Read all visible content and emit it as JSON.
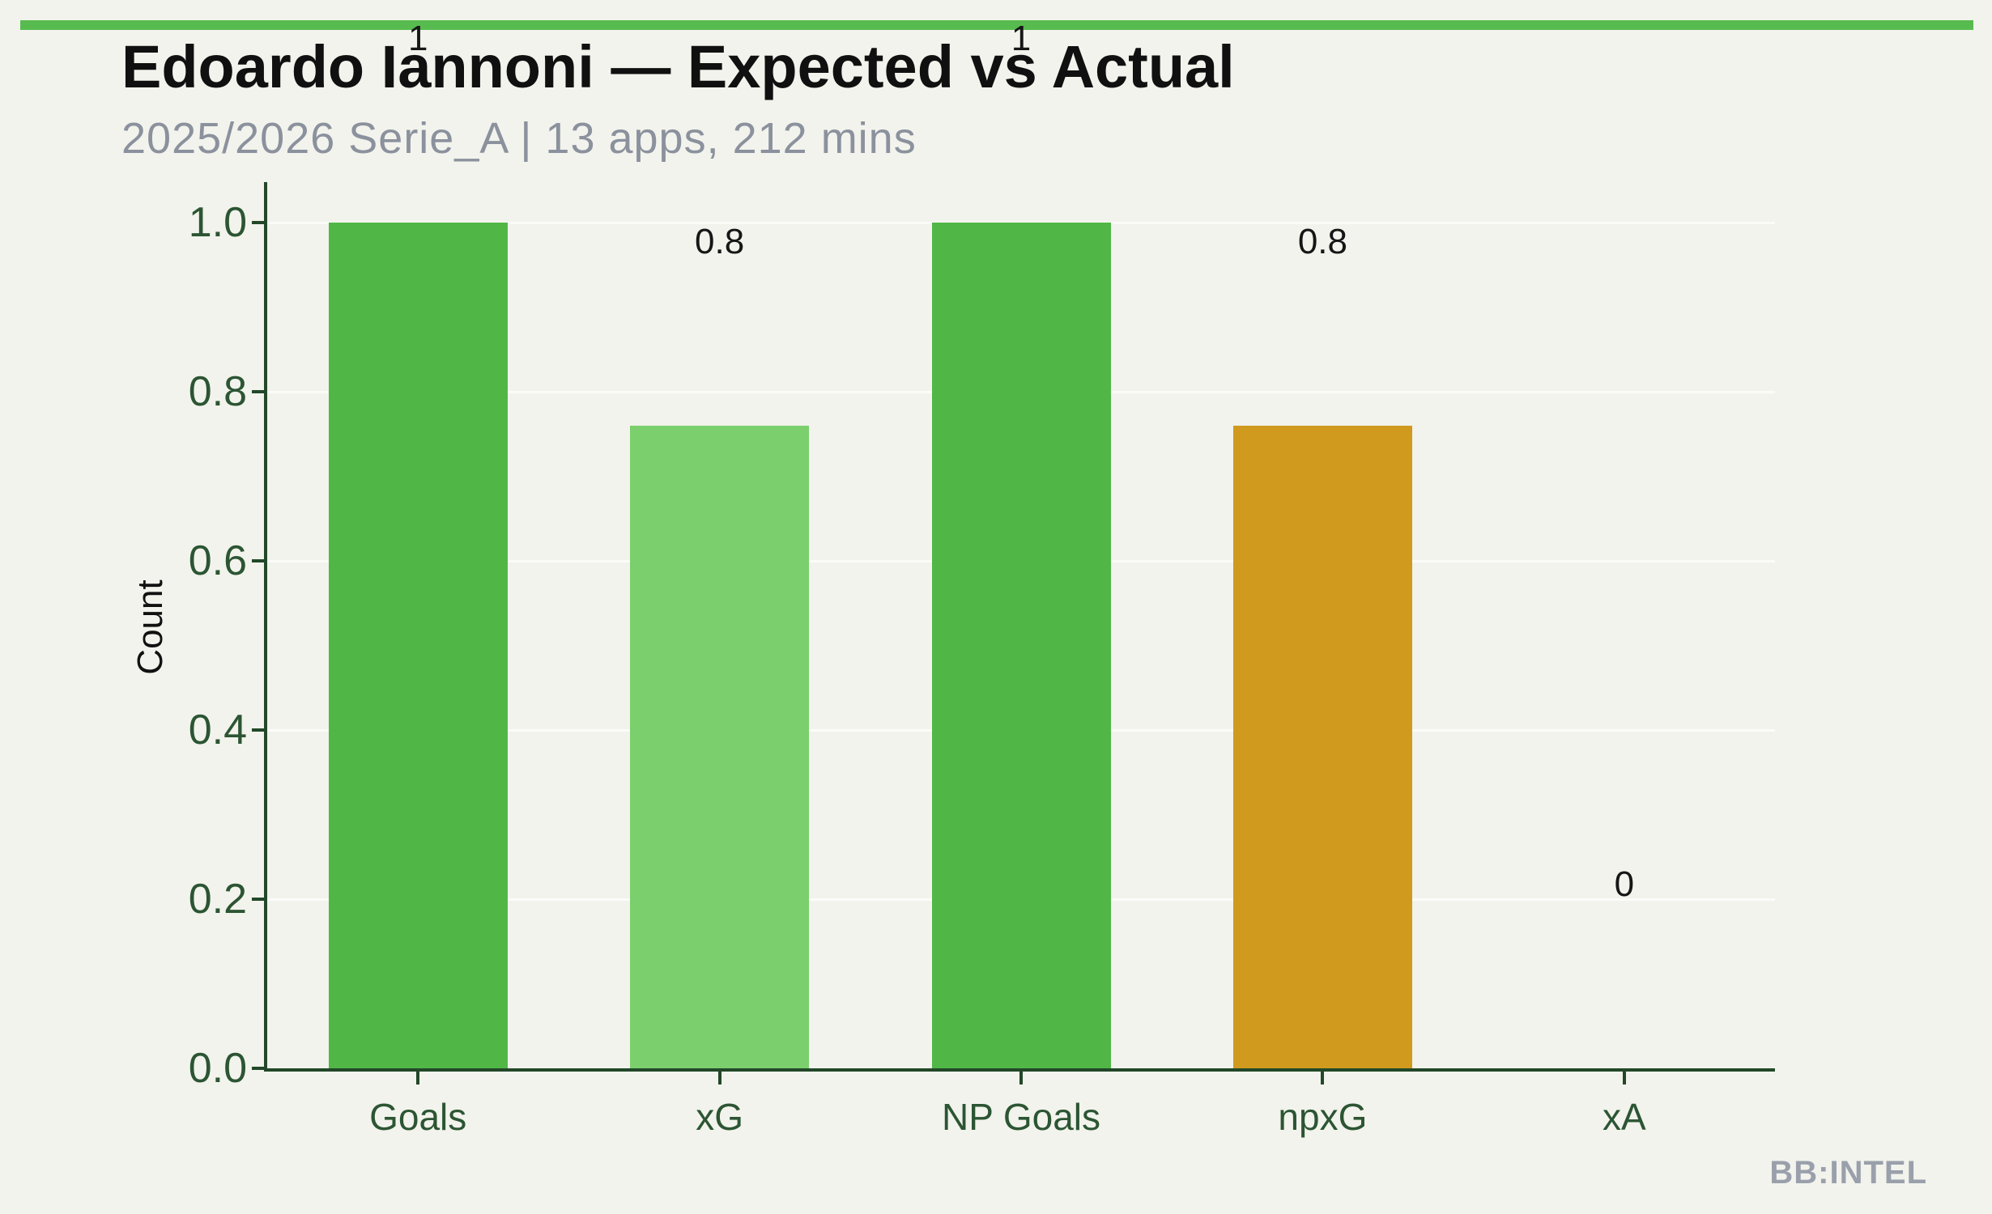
{
  "page": {
    "background_color": "#f2f3ec",
    "accent_bar_color": "#58bb4f"
  },
  "header": {
    "title": "Edoardo Iannoni — Expected vs Actual",
    "subtitle": "2025/2026 Serie_A | 13 apps, 212 mins"
  },
  "watermark": "BB:INTEL",
  "chart_data": {
    "type": "bar",
    "title": "Edoardo Iannoni — Expected vs Actual",
    "subtitle": "2025/2026 Serie_A | 13 apps, 212 mins",
    "categories": [
      "Goals",
      "xG",
      "NP Goals",
      "npxG",
      "xA"
    ],
    "values": [
      1,
      0.76,
      1,
      0.76,
      0
    ],
    "value_labels": [
      "1",
      "0.8",
      "1",
      "0.8",
      "0"
    ],
    "bar_colors": [
      "#50b746",
      "#7ccf6d",
      "#50b746",
      "#d09a1e",
      "#50b746"
    ],
    "xlabel": "",
    "ylabel": "Count",
    "ylim": [
      0.0,
      1.0
    ],
    "yticks": [
      0.0,
      0.2,
      0.4,
      0.6,
      0.8,
      1.0
    ],
    "ytick_labels": [
      "0.0",
      "0.2",
      "0.4",
      "0.6",
      "0.8",
      "1.0"
    ],
    "grid": "horizontal-subtle",
    "legend": "none",
    "axis_color": "#224829",
    "tick_label_color": "#2c5533"
  }
}
